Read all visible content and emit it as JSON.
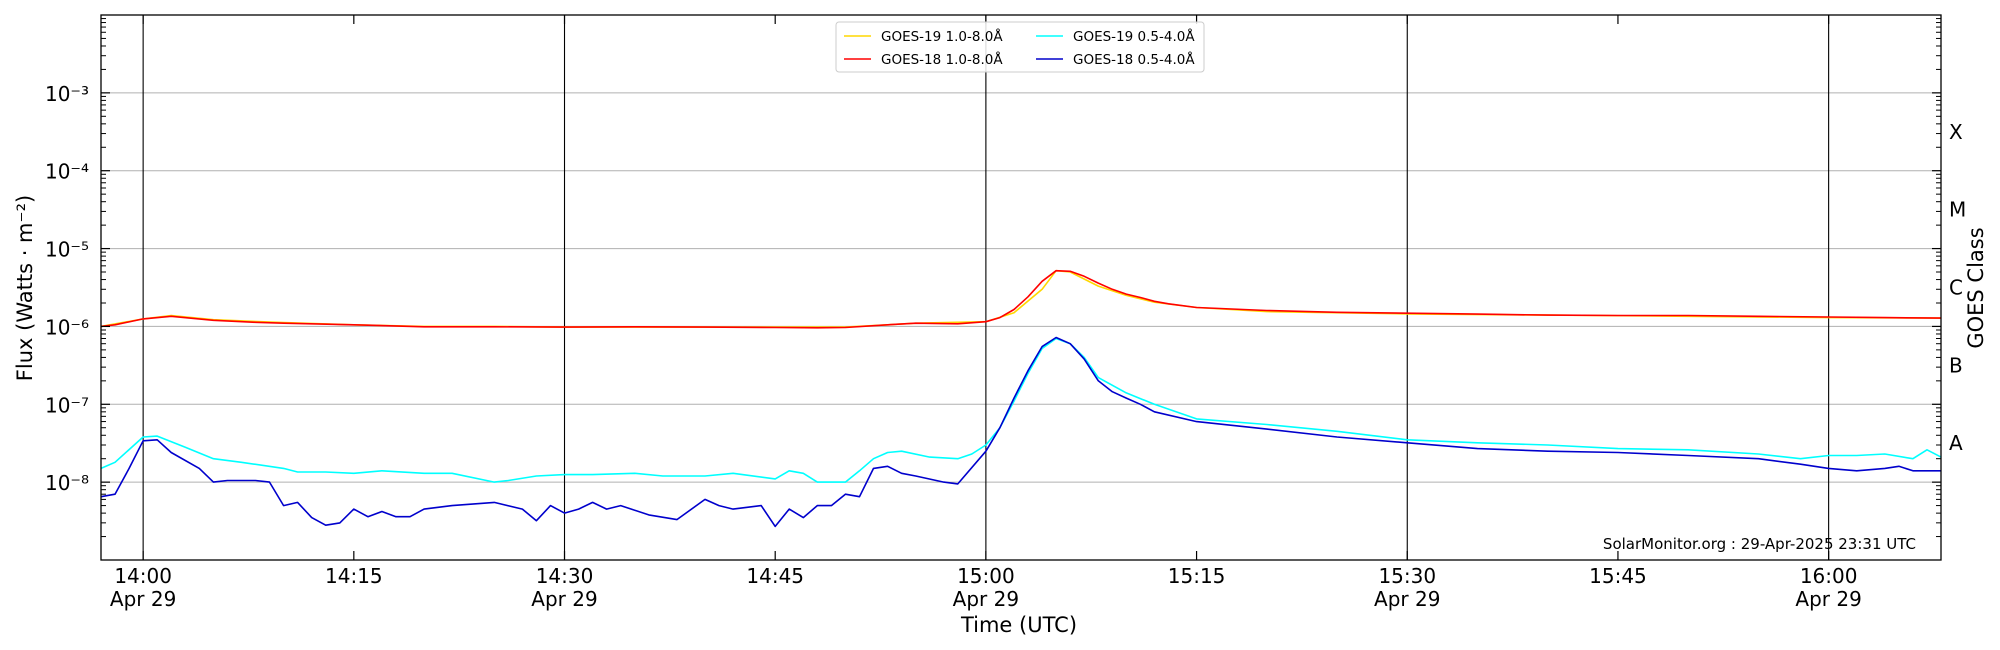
{
  "chart_data": {
    "type": "line",
    "xlabel": "Time (UTC)",
    "ylabel": "Flux (Watts · m⁻²)",
    "right_axis_label": "GOES Class",
    "credit": "SolarMonitor.org : 29-Apr-2025 23:31 UTC",
    "x_range": [
      "13:57",
      "16:08"
    ],
    "ylim": [
      1e-09,
      0.01
    ],
    "y_scale": "log",
    "x_ticks": [
      {
        "time": "14:00",
        "label": "14:00",
        "sublabel": "Apr 29",
        "major": true
      },
      {
        "time": "14:15",
        "label": "14:15",
        "sublabel": "",
        "major": false
      },
      {
        "time": "14:30",
        "label": "14:30",
        "sublabel": "Apr 29",
        "major": true
      },
      {
        "time": "14:45",
        "label": "14:45",
        "sublabel": "",
        "major": false
      },
      {
        "time": "15:00",
        "label": "15:00",
        "sublabel": "Apr 29",
        "major": true
      },
      {
        "time": "15:15",
        "label": "15:15",
        "sublabel": "",
        "major": false
      },
      {
        "time": "15:30",
        "label": "15:30",
        "sublabel": "Apr 29",
        "major": true
      },
      {
        "time": "15:45",
        "label": "15:45",
        "sublabel": "",
        "major": false
      },
      {
        "time": "16:00",
        "label": "16:00",
        "sublabel": "Apr 29",
        "major": true
      }
    ],
    "y_ticks": [
      {
        "exp": -8,
        "label": "10⁻⁸"
      },
      {
        "exp": -7,
        "label": "10⁻⁷"
      },
      {
        "exp": -6,
        "label": "10⁻⁶"
      },
      {
        "exp": -5,
        "label": "10⁻⁵"
      },
      {
        "exp": -4,
        "label": "10⁻⁴"
      },
      {
        "exp": -3,
        "label": "10⁻³"
      }
    ],
    "goes_classes": [
      {
        "label": "A",
        "flux": 3.16e-08
      },
      {
        "label": "B",
        "flux": 3.16e-07
      },
      {
        "label": "C",
        "flux": 3.16e-06
      },
      {
        "label": "M",
        "flux": 3.16e-05
      },
      {
        "label": "X",
        "flux": 0.000316
      }
    ],
    "grid": true,
    "legend_position": "top-center",
    "series": [
      {
        "name": "GOES-19 1.0-8.0Å",
        "color": "#ffd700",
        "x": [
          "13:57",
          "14:00",
          "14:02",
          "14:05",
          "14:10",
          "14:15",
          "14:20",
          "14:25",
          "14:30",
          "14:35",
          "14:40",
          "14:45",
          "14:50",
          "14:53",
          "14:55",
          "15:00",
          "15:02",
          "15:04",
          "15:05",
          "15:06",
          "15:08",
          "15:10",
          "15:12",
          "15:15",
          "15:20",
          "15:30",
          "15:40",
          "15:50",
          "16:00",
          "16:08"
        ],
        "values": [
          1e-06,
          1.25e-06,
          1.38e-06,
          1.22e-06,
          1.12e-06,
          1.05e-06,
          1e-06,
          1e-06,
          9.8e-07,
          9.8e-07,
          9.8e-07,
          9.8e-07,
          9.8e-07,
          1.05e-06,
          1.1e-06,
          1.15e-06,
          1.5e-06,
          3e-06,
          5.2e-06,
          5e-06,
          3.3e-06,
          2.5e-06,
          2.05e-06,
          1.75e-06,
          1.55e-06,
          1.45e-06,
          1.4e-06,
          1.35e-06,
          1.3e-06,
          1.28e-06
        ]
      },
      {
        "name": "GOES-18 1.0-8.0Å",
        "color": "#ff0000",
        "x": [
          "13:57",
          "13:58",
          "14:00",
          "14:02",
          "14:05",
          "14:08",
          "14:10",
          "14:15",
          "14:20",
          "14:25",
          "14:30",
          "14:35",
          "14:40",
          "14:45",
          "14:48",
          "14:50",
          "14:53",
          "14:55",
          "14:58",
          "15:00",
          "15:01",
          "15:02",
          "15:03",
          "15:04",
          "15:05",
          "15:06",
          "15:07",
          "15:08",
          "15:09",
          "15:10",
          "15:11",
          "15:12",
          "15:13",
          "15:15",
          "15:20",
          "15:25",
          "15:30",
          "15:35",
          "15:40",
          "15:45",
          "15:50",
          "15:55",
          "16:00",
          "16:04",
          "16:08"
        ],
        "values": [
          1e-06,
          1.05e-06,
          1.25e-06,
          1.35e-06,
          1.2e-06,
          1.13e-06,
          1.1e-06,
          1.05e-06,
          9.9e-07,
          9.9e-07,
          9.8e-07,
          9.9e-07,
          9.8e-07,
          9.7e-07,
          9.6e-07,
          9.7e-07,
          1.05e-06,
          1.1e-06,
          1.08e-06,
          1.15e-06,
          1.3e-06,
          1.65e-06,
          2.4e-06,
          3.8e-06,
          5.2e-06,
          5.1e-06,
          4.4e-06,
          3.6e-06,
          3e-06,
          2.6e-06,
          2.35e-06,
          2.1e-06,
          1.95e-06,
          1.75e-06,
          1.6e-06,
          1.52e-06,
          1.48e-06,
          1.44e-06,
          1.4e-06,
          1.38e-06,
          1.38e-06,
          1.35e-06,
          1.32e-06,
          1.3e-06,
          1.28e-06
        ]
      },
      {
        "name": "GOES-19 0.5-4.0Å",
        "color": "#00ffff",
        "x": [
          "13:57",
          "13:58",
          "14:00",
          "14:01",
          "14:03",
          "14:05",
          "14:07",
          "14:10",
          "14:11",
          "14:13",
          "14:15",
          "14:17",
          "14:20",
          "14:22",
          "14:25",
          "14:26",
          "14:28",
          "14:30",
          "14:32",
          "14:35",
          "14:37",
          "14:40",
          "14:42",
          "14:45",
          "14:46",
          "14:47",
          "14:48",
          "14:50",
          "14:51",
          "14:52",
          "14:53",
          "14:54",
          "14:56",
          "14:58",
          "14:59",
          "15:00",
          "15:01",
          "15:02",
          "15:03",
          "15:04",
          "15:05",
          "15:06",
          "15:07",
          "15:08",
          "15:10",
          "15:12",
          "15:15",
          "15:20",
          "15:25",
          "15:30",
          "15:35",
          "15:40",
          "15:45",
          "15:50",
          "15:55",
          "15:58",
          "16:00",
          "16:02",
          "16:04",
          "16:06",
          "16:07",
          "16:08"
        ],
        "values": [
          1.5e-08,
          1.8e-08,
          3.8e-08,
          3.9e-08,
          2.8e-08,
          2e-08,
          1.8e-08,
          1.5e-08,
          1.35e-08,
          1.35e-08,
          1.3e-08,
          1.4e-08,
          1.3e-08,
          1.3e-08,
          1e-08,
          1.05e-08,
          1.2e-08,
          1.25e-08,
          1.25e-08,
          1.3e-08,
          1.2e-08,
          1.2e-08,
          1.3e-08,
          1.1e-08,
          1.4e-08,
          1.3e-08,
          1e-08,
          1e-08,
          1.4e-08,
          2e-08,
          2.4e-08,
          2.5e-08,
          2.1e-08,
          2e-08,
          2.3e-08,
          3e-08,
          5e-08,
          1.1e-07,
          2.5e-07,
          5.2e-07,
          7e-07,
          6e-07,
          4e-07,
          2.2e-07,
          1.4e-07,
          1e-07,
          6.5e-08,
          5.5e-08,
          4.5e-08,
          3.5e-08,
          3.2e-08,
          3e-08,
          2.7e-08,
          2.6e-08,
          2.3e-08,
          2e-08,
          2.2e-08,
          2.2e-08,
          2.3e-08,
          2e-08,
          2.6e-08,
          2.1e-08
        ]
      },
      {
        "name": "GOES-18 0.5-4.0Å",
        "color": "#0000cc",
        "x": [
          "13:57",
          "13:58",
          "13:59",
          "14:00",
          "14:01",
          "14:02",
          "14:04",
          "14:05",
          "14:06",
          "14:08",
          "14:09",
          "14:10",
          "14:11",
          "14:12",
          "14:13",
          "14:14",
          "14:15",
          "14:16",
          "14:17",
          "14:18",
          "14:19",
          "14:20",
          "14:22",
          "14:25",
          "14:27",
          "14:28",
          "14:29",
          "14:30",
          "14:31",
          "14:32",
          "14:33",
          "14:34",
          "14:36",
          "14:38",
          "14:40",
          "14:41",
          "14:42",
          "14:44",
          "14:45",
          "14:46",
          "14:47",
          "14:48",
          "14:49",
          "14:50",
          "14:51",
          "14:52",
          "14:53",
          "14:54",
          "14:55",
          "14:57",
          "14:58",
          "15:00",
          "15:01",
          "15:02",
          "15:03",
          "15:04",
          "15:05",
          "15:06",
          "15:07",
          "15:08",
          "15:09",
          "15:10",
          "15:11",
          "15:12",
          "15:15",
          "15:20",
          "15:25",
          "15:30",
          "15:35",
          "15:40",
          "15:45",
          "15:50",
          "15:55",
          "15:58",
          "16:00",
          "16:02",
          "16:04",
          "16:05",
          "16:06",
          "16:08"
        ],
        "values": [
          6.5e-09,
          7e-09,
          1.5e-08,
          3.4e-08,
          3.5e-08,
          2.4e-08,
          1.5e-08,
          1e-08,
          1.05e-08,
          1.05e-08,
          1e-08,
          5e-09,
          5.5e-09,
          3.5e-09,
          2.8e-09,
          3e-09,
          4.5e-09,
          3.6e-09,
          4.2e-09,
          3.6e-09,
          3.6e-09,
          4.5e-09,
          5e-09,
          5.5e-09,
          4.5e-09,
          3.2e-09,
          5e-09,
          4e-09,
          4.5e-09,
          5.5e-09,
          4.5e-09,
          5e-09,
          3.8e-09,
          3.3e-09,
          6e-09,
          5e-09,
          4.5e-09,
          5e-09,
          2.7e-09,
          4.5e-09,
          3.5e-09,
          5e-09,
          5e-09,
          7e-09,
          6.5e-09,
          1.5e-08,
          1.6e-08,
          1.3e-08,
          1.2e-08,
          1e-08,
          9.5e-09,
          2.5e-08,
          5e-08,
          1.2e-07,
          2.7e-07,
          5.5e-07,
          7.2e-07,
          6e-07,
          3.8e-07,
          2e-07,
          1.45e-07,
          1.2e-07,
          1e-07,
          8e-08,
          6e-08,
          4.8e-08,
          3.8e-08,
          3.2e-08,
          2.7e-08,
          2.5e-08,
          2.4e-08,
          2.2e-08,
          2e-08,
          1.7e-08,
          1.5e-08,
          1.4e-08,
          1.5e-08,
          1.6e-08,
          1.4e-08,
          1.4e-08
        ]
      }
    ]
  }
}
